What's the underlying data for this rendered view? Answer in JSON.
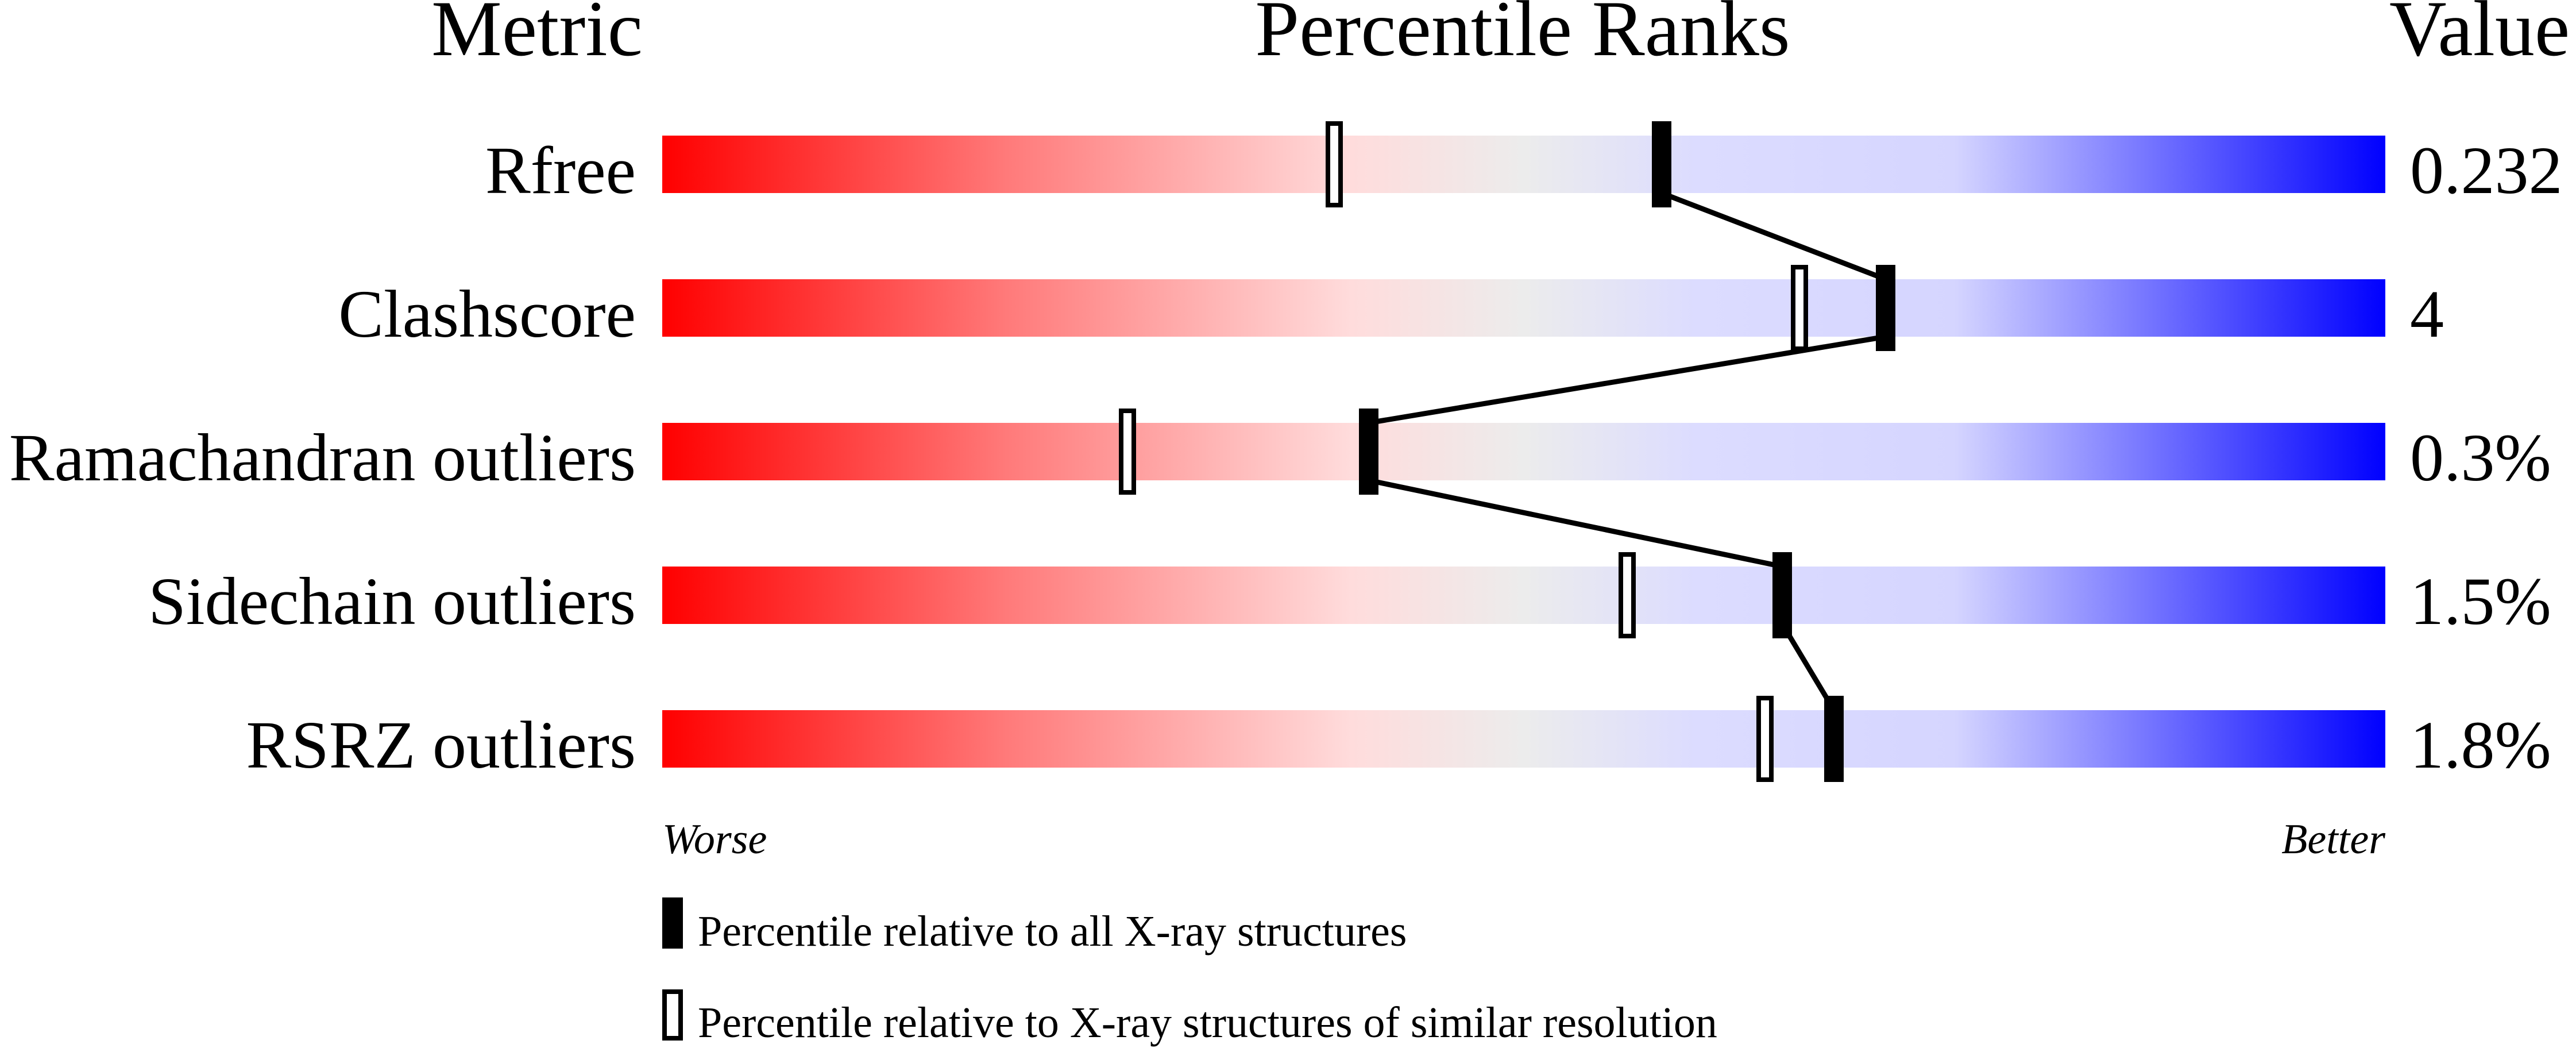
{
  "chart_data": {
    "type": "percentile-bars",
    "headers": {
      "metric": "Metric",
      "ranks": "Percentile Ranks",
      "value": "Value"
    },
    "xlim": [
      0,
      100
    ],
    "scale_labels": {
      "low": "Worse",
      "high": "Better"
    },
    "gradient_colors": [
      "#ff0000",
      "#ff7a7a",
      "#ffdcdc",
      "#ececec",
      "#dcdcff",
      "#d5d5ff",
      "#0000ff"
    ],
    "rows": [
      {
        "metric": "Rfree",
        "value": "0.232",
        "percentile_all": 58,
        "percentile_similar": 39
      },
      {
        "metric": "Clashscore",
        "value": "4",
        "percentile_all": 71,
        "percentile_similar": 66
      },
      {
        "metric": "Ramachandran outliers",
        "value": "0.3%",
        "percentile_all": 41,
        "percentile_similar": 27
      },
      {
        "metric": "Sidechain outliers",
        "value": "1.5%",
        "percentile_all": 65,
        "percentile_similar": 56
      },
      {
        "metric": "RSRZ outliers",
        "value": "1.8%",
        "percentile_all": 68,
        "percentile_similar": 64
      }
    ],
    "legend": [
      {
        "marker": "filled",
        "label": "Percentile relative to all X-ray structures"
      },
      {
        "marker": "open",
        "label": "Percentile relative to X-ray structures of similar resolution"
      }
    ]
  }
}
